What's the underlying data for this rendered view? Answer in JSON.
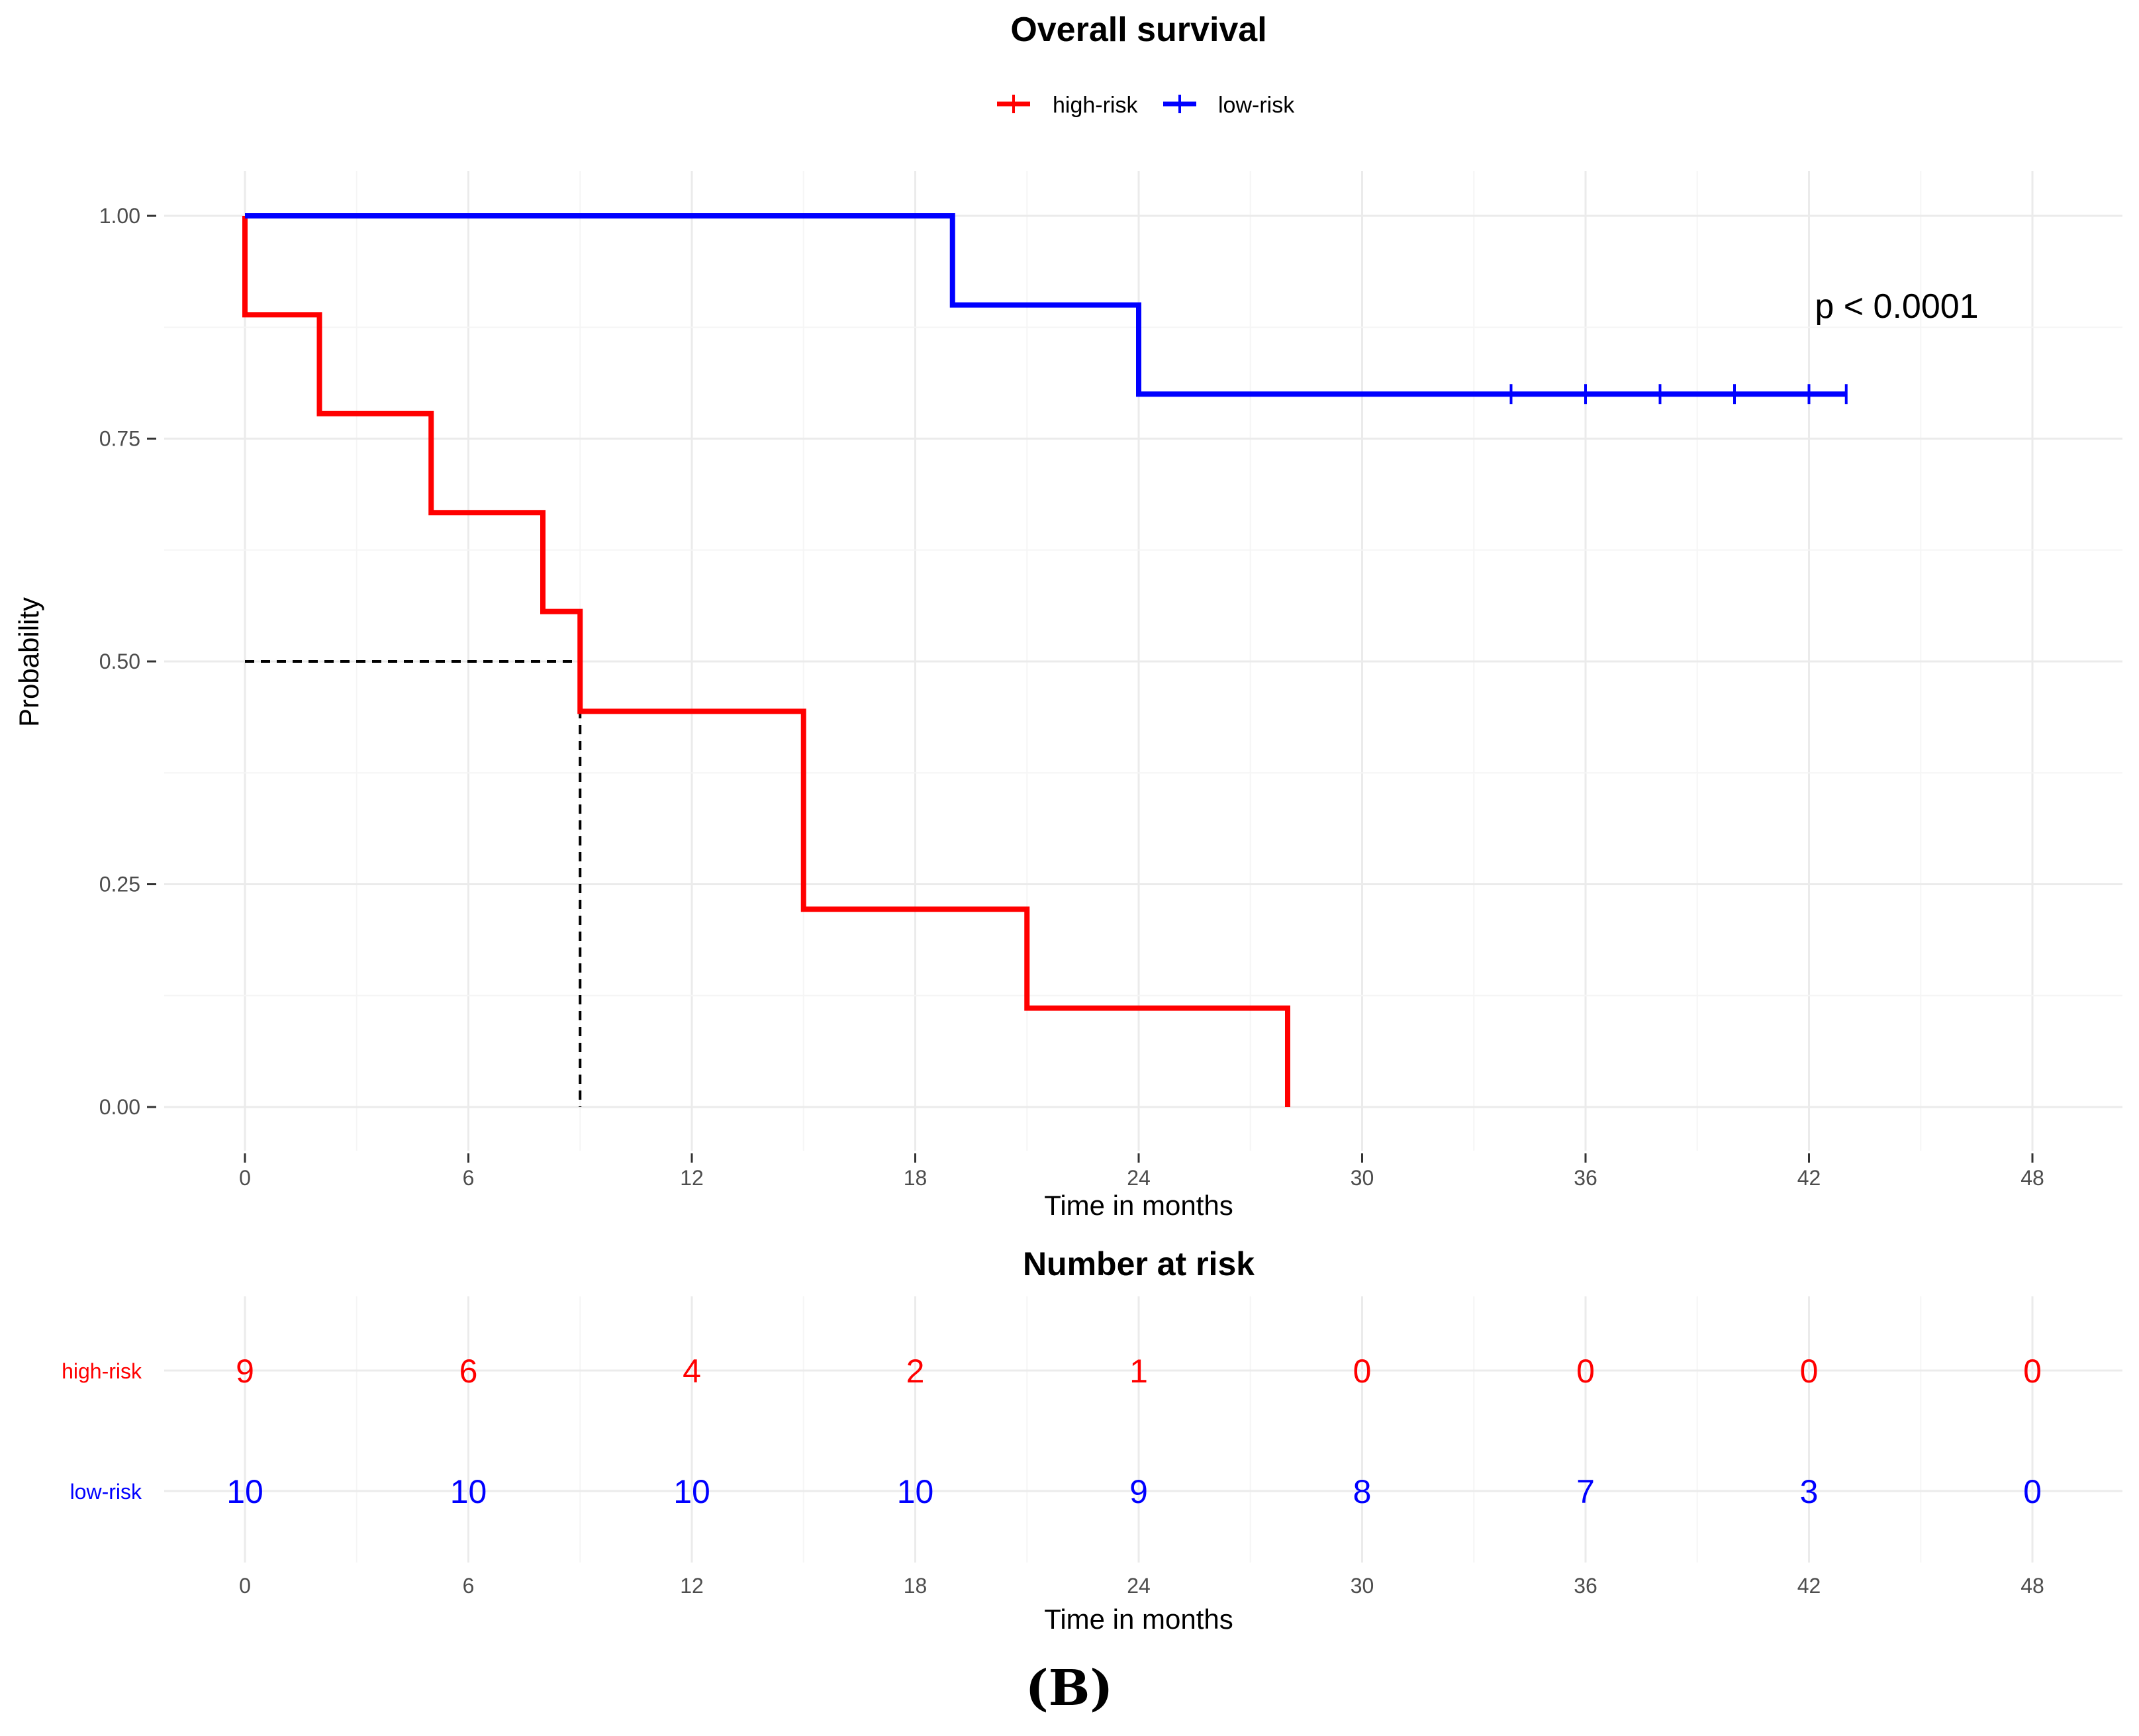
{
  "colors": {
    "high_risk": "#ff0000",
    "low_risk": "#0000ff",
    "grid_major": "#ebebeb",
    "grid_minor": "#f5f5f5",
    "tick_text": "#4d4d4d",
    "median_line": "#000000"
  },
  "panel_label": "(B)",
  "chart_data": [
    {
      "type": "line",
      "subtype": "kaplan-meier-step",
      "title": "Overall survival",
      "xlabel": "Time in months",
      "ylabel": "Probability",
      "xlim": [
        0,
        48
      ],
      "ylim": [
        0,
        1
      ],
      "xticks": [
        0,
        6,
        12,
        18,
        24,
        30,
        36,
        42,
        48
      ],
      "xtick_labels": [
        "0",
        "6",
        "12",
        "18",
        "24",
        "30",
        "36",
        "42",
        "48"
      ],
      "yticks": [
        0,
        0.25,
        0.5,
        0.75,
        1
      ],
      "ytick_labels": [
        "0.00",
        "0.25",
        "0.50",
        "0.75",
        "1.00"
      ],
      "legend": [
        "high-risk",
        "low-risk"
      ],
      "legend_position": "top-center",
      "annotation": "p < 0.0001",
      "median_survival": {
        "series": "high-risk",
        "x": 9,
        "y": 0.5
      },
      "series": [
        {
          "name": "high-risk",
          "color": "#ff0000",
          "x": [
            0,
            0,
            2,
            5,
            8,
            9,
            15,
            21,
            28
          ],
          "y": [
            1,
            0.889,
            0.778,
            0.667,
            0.556,
            0.444,
            0.222,
            0.111,
            0
          ],
          "censor_x": []
        },
        {
          "name": "low-risk",
          "color": "#0000ff",
          "x": [
            0,
            19,
            24,
            43
          ],
          "y": [
            1,
            0.9,
            0.8,
            0.8
          ],
          "censor_x": [
            34,
            36,
            38,
            40,
            42,
            43
          ]
        }
      ]
    },
    {
      "type": "table",
      "title": "Number at risk",
      "xlabel": "Time in months",
      "columns": [
        0,
        6,
        12,
        18,
        24,
        30,
        36,
        42,
        48
      ],
      "column_labels": [
        "0",
        "6",
        "12",
        "18",
        "24",
        "30",
        "36",
        "42",
        "48"
      ],
      "rows": [
        {
          "name": "high-risk",
          "color": "#ff0000",
          "values": [
            9,
            6,
            4,
            2,
            1,
            0,
            0,
            0,
            0
          ]
        },
        {
          "name": "low-risk",
          "color": "#0000ff",
          "values": [
            10,
            10,
            10,
            10,
            9,
            8,
            7,
            3,
            0
          ]
        }
      ]
    }
  ]
}
